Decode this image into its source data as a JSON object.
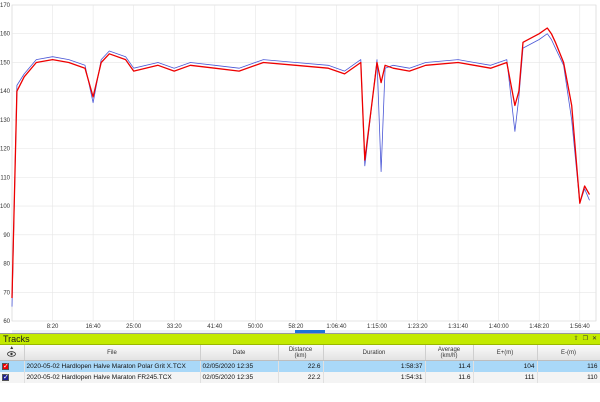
{
  "chart": {
    "y_ticks": [
      60,
      70,
      80,
      90,
      100,
      110,
      120,
      130,
      140,
      150,
      160,
      170
    ],
    "ylim": [
      60,
      170
    ],
    "x_ticks": [
      "8:20",
      "16:40",
      "25:00",
      "33:20",
      "41:40",
      "50:00",
      "58:20",
      "1:06:40",
      "1:15:00",
      "1:23:20",
      "1:31:40",
      "1:40:00",
      "1:48:20",
      "1:56:40"
    ],
    "colors": {
      "red": "#ee0000",
      "blue": "#4a57d6",
      "grid": "#e6e6e6"
    }
  },
  "chart_data": {
    "type": "line",
    "x_unit": "seconds",
    "ylim": [
      60,
      170
    ],
    "series": [
      {
        "color": "#ee0000",
        "x": [
          0,
          60,
          150,
          300,
          500,
          700,
          900,
          1000,
          1100,
          1200,
          1400,
          1500,
          1800,
          2000,
          2200,
          2500,
          2800,
          3100,
          3500,
          3900,
          4100,
          4300,
          4350,
          4500,
          4550,
          4600,
          4700,
          4900,
          5100,
          5500,
          5700,
          5900,
          6100,
          6200,
          6250,
          6300,
          6500,
          6600,
          6650,
          6700,
          6800,
          6900,
          7000,
          7060,
          7120
        ],
        "y": [
          68,
          140,
          145,
          150,
          151,
          150,
          148,
          138,
          150,
          153,
          151,
          147,
          149,
          147,
          149,
          148,
          147,
          150,
          149,
          148,
          146,
          150,
          116,
          150,
          143,
          149,
          148,
          147,
          149,
          150,
          149,
          148,
          150,
          135,
          140,
          157,
          160,
          162,
          160,
          157,
          150,
          135,
          101,
          107,
          104
        ]
      },
      {
        "color": "#4a57d6",
        "x": [
          0,
          60,
          150,
          300,
          500,
          700,
          900,
          1000,
          1100,
          1200,
          1400,
          1500,
          1800,
          2000,
          2200,
          2500,
          2800,
          3100,
          3500,
          3900,
          4100,
          4300,
          4350,
          4500,
          4550,
          4600,
          4700,
          4900,
          5100,
          5500,
          5700,
          5900,
          6100,
          6200,
          6250,
          6300,
          6500,
          6600,
          6650,
          6700,
          6800,
          6900,
          7000,
          7060,
          7120
        ],
        "y": [
          65,
          142,
          146,
          151,
          152,
          151,
          149,
          136,
          151,
          154,
          152,
          148,
          150,
          148,
          150,
          149,
          148,
          151,
          150,
          149,
          147,
          151,
          114,
          151,
          112,
          148,
          149,
          148,
          150,
          151,
          150,
          149,
          151,
          126,
          138,
          155,
          158,
          160,
          158,
          155,
          149,
          130,
          101,
          106,
          102
        ]
      }
    ]
  },
  "tracks": {
    "title": "Tracks",
    "controls": [
      "⇧",
      "❐",
      "✕"
    ],
    "columns": {
      "file": "File",
      "date": "Date",
      "distance": "Distance",
      "distance_unit": "(km)",
      "duration": "Duration",
      "average": "Average",
      "average_unit": "(km/h)",
      "eplus": "E+(m)",
      "eminus": "E-(m)"
    },
    "rows": [
      {
        "color": "#ee0000",
        "file": "2020-05-02 Hardlopen Halve Maraton Polar Grit X.TCX",
        "date": "02/05/2020 12:35",
        "distance": "22.6",
        "duration": "1:58:37",
        "average": "11.4",
        "eplus": "104",
        "eminus": "116"
      },
      {
        "color": "#1d1d8f",
        "file": "2020-05-02 Hardlopen Halve Maraton FR245.TCX",
        "date": "02/05/2020 12:35",
        "distance": "22.2",
        "duration": "1:54:31",
        "average": "11.6",
        "eplus": "111",
        "eminus": "110"
      }
    ]
  }
}
